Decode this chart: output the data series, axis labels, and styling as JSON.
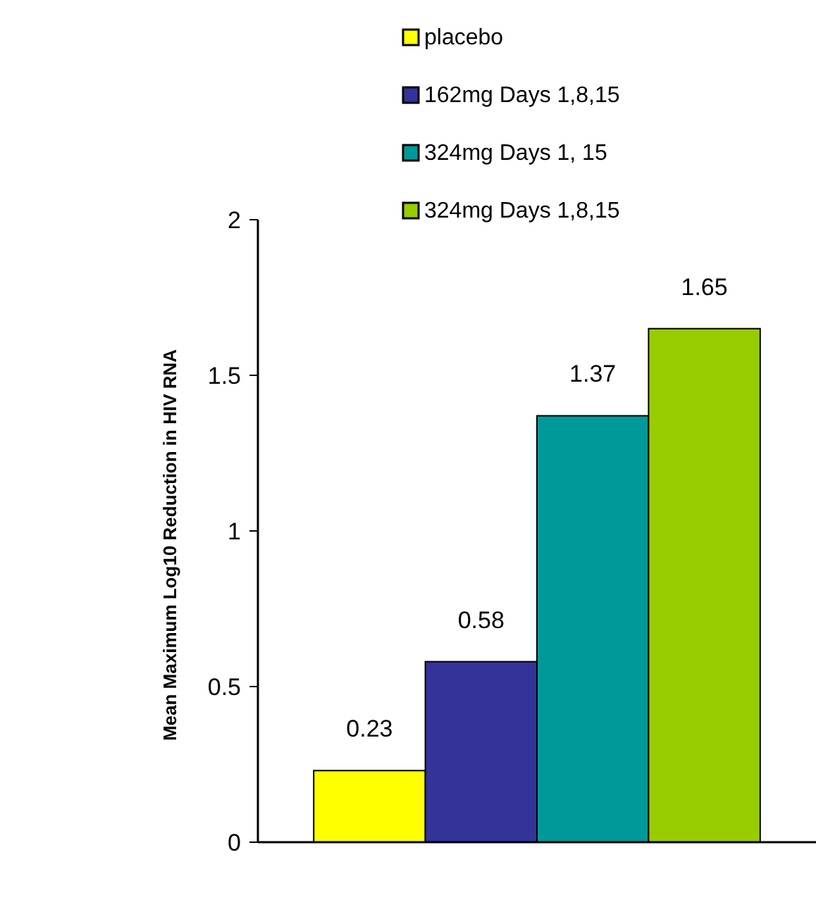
{
  "chart_data": {
    "type": "bar",
    "ylabel": "Mean Maximum Log10 Reduction in HIV RNA",
    "categories": [
      null
    ],
    "series": [
      {
        "name": "placebo",
        "color": "#ffff00",
        "values": [
          0.23
        ],
        "value_labels": [
          "0.23"
        ]
      },
      {
        "name": "162mg Days 1,8,15",
        "color": "#333399",
        "values": [
          0.58
        ],
        "value_labels": [
          "0.58"
        ]
      },
      {
        "name": "324mg Days 1, 15",
        "color": "#009999",
        "values": [
          1.37
        ],
        "value_labels": [
          "1.37"
        ]
      },
      {
        "name": "324mg Days 1,8,15",
        "color": "#99cc00",
        "values": [
          1.65
        ],
        "value_labels": [
          "1.65"
        ]
      }
    ],
    "ylim": [
      0,
      2
    ],
    "yticks": [
      0,
      0.5,
      1,
      1.5,
      2
    ],
    "grid": false,
    "legend": "top"
  }
}
